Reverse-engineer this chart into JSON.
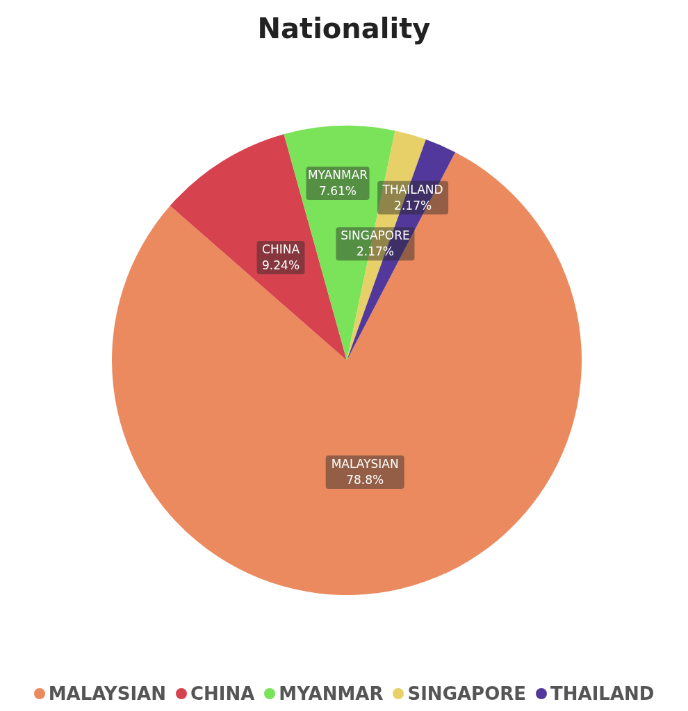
{
  "chart_data": {
    "type": "pie",
    "title": "Nationality",
    "categories": [
      "MALAYSIAN",
      "CHINA",
      "MYANMAR",
      "SINGAPORE",
      "THAILAND"
    ],
    "values": [
      78.8,
      9.24,
      7.61,
      2.17,
      2.17
    ],
    "colors": [
      "#eb8a5e",
      "#d6434f",
      "#7ae35a",
      "#e6d067",
      "#51389a"
    ],
    "value_labels": [
      "78.8%",
      "9.24%",
      "7.61%",
      "2.17%",
      "2.17%"
    ],
    "legend": "bottom"
  }
}
